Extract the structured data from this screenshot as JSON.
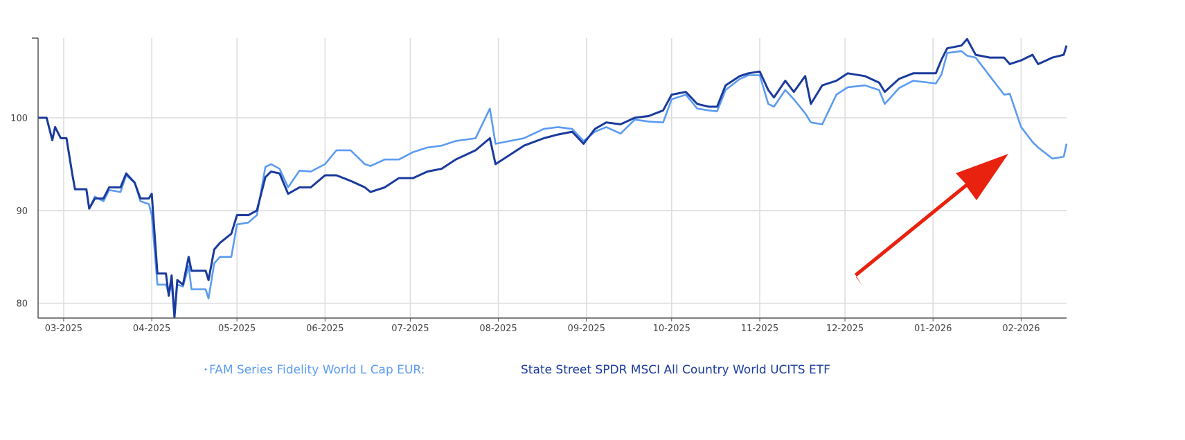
{
  "chart_data": {
    "type": "line",
    "title": "",
    "xlabel": "",
    "ylabel": "",
    "xlim": [
      "2025-02-20",
      "2026-02-17"
    ],
    "ylim": [
      78.4,
      108.6
    ],
    "grid": true,
    "legend_position": "bottom",
    "y_ticks": [
      "80",
      "90",
      "100"
    ],
    "x_ticks": [
      {
        "date": "2025-03-01",
        "label": "03-2025"
      },
      {
        "date": "2025-04-01",
        "label": "04-2025"
      },
      {
        "date": "2025-05-01",
        "label": "05-2025"
      },
      {
        "date": "2025-06-01",
        "label": "06-2025"
      },
      {
        "date": "2025-07-01",
        "label": "07-2025"
      },
      {
        "date": "2025-08-01",
        "label": "08-2025"
      },
      {
        "date": "2025-09-01",
        "label": "09-2025"
      },
      {
        "date": "2025-10-01",
        "label": "10-2025"
      },
      {
        "date": "2025-11-01",
        "label": "11-2025"
      },
      {
        "date": "2025-12-01",
        "label": "12-2025"
      },
      {
        "date": "2026-01-01",
        "label": "01-2026"
      },
      {
        "date": "2026-02-01",
        "label": "02-2026"
      }
    ],
    "x": [
      "2025-02-20",
      "2025-02-23",
      "2025-02-25",
      "2025-02-26",
      "2025-02-28",
      "2025-03-02",
      "2025-03-04",
      "2025-03-05",
      "2025-03-09",
      "2025-03-10",
      "2025-03-12",
      "2025-03-15",
      "2025-03-17",
      "2025-03-21",
      "2025-03-23",
      "2025-03-26",
      "2025-03-28",
      "2025-03-31",
      "2025-04-01",
      "2025-04-03",
      "2025-04-06",
      "2025-04-07",
      "2025-04-08",
      "2025-04-09",
      "2025-04-10",
      "2025-04-12",
      "2025-04-14",
      "2025-04-15",
      "2025-04-20",
      "2025-04-21",
      "2025-04-23",
      "2025-04-25",
      "2025-04-29",
      "2025-05-01",
      "2025-05-05",
      "2025-05-08",
      "2025-05-11",
      "2025-05-13",
      "2025-05-16",
      "2025-05-19",
      "2025-05-23",
      "2025-05-27",
      "2025-06-01",
      "2025-06-05",
      "2025-06-10",
      "2025-06-15",
      "2025-06-17",
      "2025-06-22",
      "2025-06-27",
      "2025-07-02",
      "2025-07-07",
      "2025-07-12",
      "2025-07-17",
      "2025-07-24",
      "2025-07-29",
      "2025-07-31",
      "2025-08-05",
      "2025-08-10",
      "2025-08-17",
      "2025-08-22",
      "2025-08-27",
      "2025-08-31",
      "2025-09-04",
      "2025-09-08",
      "2025-09-13",
      "2025-09-18",
      "2025-09-23",
      "2025-09-28",
      "2025-10-01",
      "2025-10-06",
      "2025-10-10",
      "2025-10-14",
      "2025-10-17",
      "2025-10-20",
      "2025-10-25",
      "2025-10-28",
      "2025-11-01",
      "2025-11-04",
      "2025-11-06",
      "2025-11-10",
      "2025-11-13",
      "2025-11-17",
      "2025-11-19",
      "2025-11-23",
      "2025-11-28",
      "2025-12-02",
      "2025-12-08",
      "2025-12-13",
      "2025-12-15",
      "2025-12-20",
      "2025-12-25",
      "2026-01-02",
      "2026-01-04",
      "2026-01-06",
      "2026-01-11",
      "2026-01-13",
      "2026-01-16",
      "2026-01-21",
      "2026-01-26",
      "2026-01-28",
      "2026-02-01",
      "2026-02-05",
      "2026-02-07",
      "2026-02-12",
      "2026-02-16",
      "2026-02-17"
    ],
    "series": [
      {
        "name": "FAM Series Fidelity World L Cap EUR:",
        "color": "#5b9bf0",
        "values": [
          100,
          100,
          97.6,
          99,
          97.8,
          97.8,
          94,
          92.3,
          92.3,
          90.2,
          91.5,
          91,
          92.2,
          92,
          93.8,
          93,
          91,
          90.7,
          89.5,
          82,
          82,
          81,
          82,
          78.5,
          82,
          81.8,
          84,
          81.5,
          81.5,
          80.5,
          84.3,
          85,
          85,
          88.5,
          88.7,
          89.5,
          94.7,
          95,
          94.5,
          92.5,
          94.3,
          94.2,
          95,
          96.5,
          96.5,
          95,
          94.8,
          95.5,
          95.5,
          96.3,
          96.8,
          97,
          97.5,
          97.8,
          101,
          97.2,
          97.5,
          97.8,
          98.8,
          99,
          98.8,
          97.5,
          98.5,
          99,
          98.3,
          99.8,
          99.6,
          99.5,
          102,
          102.5,
          101,
          100.8,
          100.7,
          103,
          104.2,
          104.6,
          104.6,
          101.5,
          101.2,
          103,
          102,
          100.5,
          99.5,
          99.3,
          102.5,
          103.3,
          103.5,
          103,
          101.5,
          103.2,
          104,
          103.7,
          104.7,
          107,
          107.2,
          106.7,
          106.5,
          104.5,
          102.5,
          102.6,
          99,
          97.4,
          96.8,
          95.6,
          95.8,
          97.2
        ]
      },
      {
        "name": "State Street SPDR MSCI All Country World UCITS ETF",
        "color": "#1a3a9c",
        "values": [
          100,
          100,
          97.6,
          99,
          97.8,
          97.8,
          94,
          92.3,
          92.3,
          90.2,
          91.3,
          91.3,
          92.5,
          92.5,
          94,
          93,
          91.3,
          91.3,
          91.8,
          83.2,
          83.2,
          80.8,
          83,
          78.5,
          82.5,
          82,
          85,
          83.5,
          83.5,
          82.5,
          85.8,
          86.5,
          87.5,
          89.5,
          89.5,
          90,
          93.6,
          94.2,
          94,
          91.8,
          92.5,
          92.5,
          93.8,
          93.8,
          93.2,
          92.5,
          92,
          92.5,
          93.5,
          93.5,
          94.2,
          94.5,
          95.5,
          96.5,
          97.8,
          95,
          96,
          97,
          97.8,
          98.2,
          98.5,
          97.2,
          98.8,
          99.5,
          99.3,
          100,
          100.2,
          100.8,
          102.5,
          102.8,
          101.5,
          101.2,
          101.2,
          103.5,
          104.5,
          104.8,
          105,
          103,
          102.2,
          104,
          102.8,
          104.5,
          101.5,
          103.5,
          104,
          104.8,
          104.5,
          103.8,
          102.8,
          104.2,
          104.8,
          104.8,
          106.3,
          107.5,
          107.8,
          108.5,
          106.8,
          106.5,
          106.5,
          105.8,
          106.2,
          106.8,
          105.8,
          106.5,
          106.8,
          107.8
        ]
      }
    ],
    "annotation": {
      "type": "arrow",
      "color": "#e8220f"
    }
  }
}
